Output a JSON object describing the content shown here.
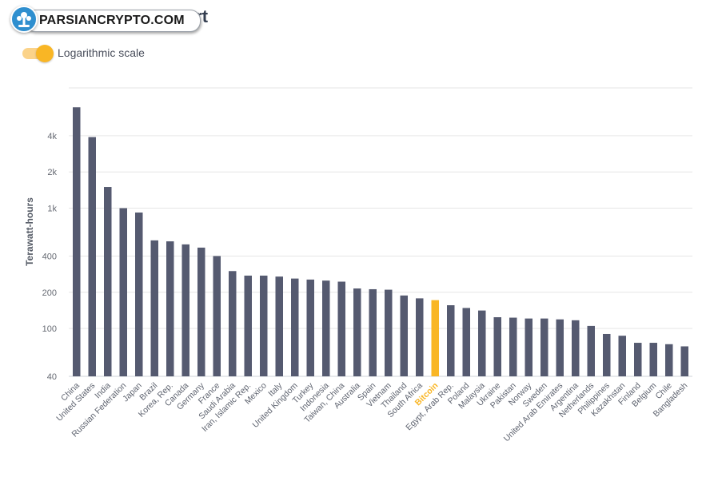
{
  "header": {
    "title_suffix": "art",
    "logo_text": "PARSIANCRYPTO.COM"
  },
  "controls": {
    "log_toggle_label": "Logarithmic scale",
    "log_toggle_on": true
  },
  "colors": {
    "bar": "#555a70",
    "highlight": "#f9b625",
    "toggle_knob": "#f9b625",
    "toggle_track": "#fbd38a",
    "logo_badge": "#2f8fcf"
  },
  "icons": {
    "logo": "parsiancrypto-logo-icon"
  },
  "chart_data": {
    "type": "bar",
    "ylabel": "Terawatt-hours",
    "y_scale": "log",
    "ylim": [
      40,
      10000
    ],
    "yticks": [
      40,
      100,
      200,
      400,
      1000,
      2000,
      4000
    ],
    "ytick_labels": [
      "40",
      "100",
      "200",
      "400",
      "1k",
      "2k",
      "4k"
    ],
    "highlight_category": "Bitcoin",
    "categories": [
      "China",
      "United States",
      "India",
      "Russian Federation",
      "Japan",
      "Brazil",
      "Korea, Rep.",
      "Canada",
      "Germany",
      "France",
      "Saudi Arabia",
      "Iran, Islamic Rep.",
      "Mexico",
      "Italy",
      "United Kingdom",
      "Turkey",
      "Indonesia",
      "Taiwan, China",
      "Australia",
      "Spain",
      "Vietnam",
      "Thailand",
      "South Africa",
      "Bitcoin",
      "Egypt, Arab Rep.",
      "Poland",
      "Malaysia",
      "Ukraine",
      "Pakistan",
      "Norway",
      "Sweden",
      "United Arab Emirates",
      "Argentina",
      "Netherlands",
      "Philippines",
      "Kazakhstan",
      "Finland",
      "Belgium",
      "Chile",
      "Bangladesh"
    ],
    "values": [
      6900,
      3900,
      1500,
      1000,
      920,
      540,
      530,
      500,
      470,
      400,
      300,
      275,
      275,
      270,
      260,
      255,
      250,
      245,
      215,
      212,
      210,
      188,
      178,
      172,
      156,
      148,
      141,
      124,
      123,
      121,
      121,
      119,
      117,
      105,
      90,
      87,
      76,
      76,
      74,
      71
    ]
  }
}
